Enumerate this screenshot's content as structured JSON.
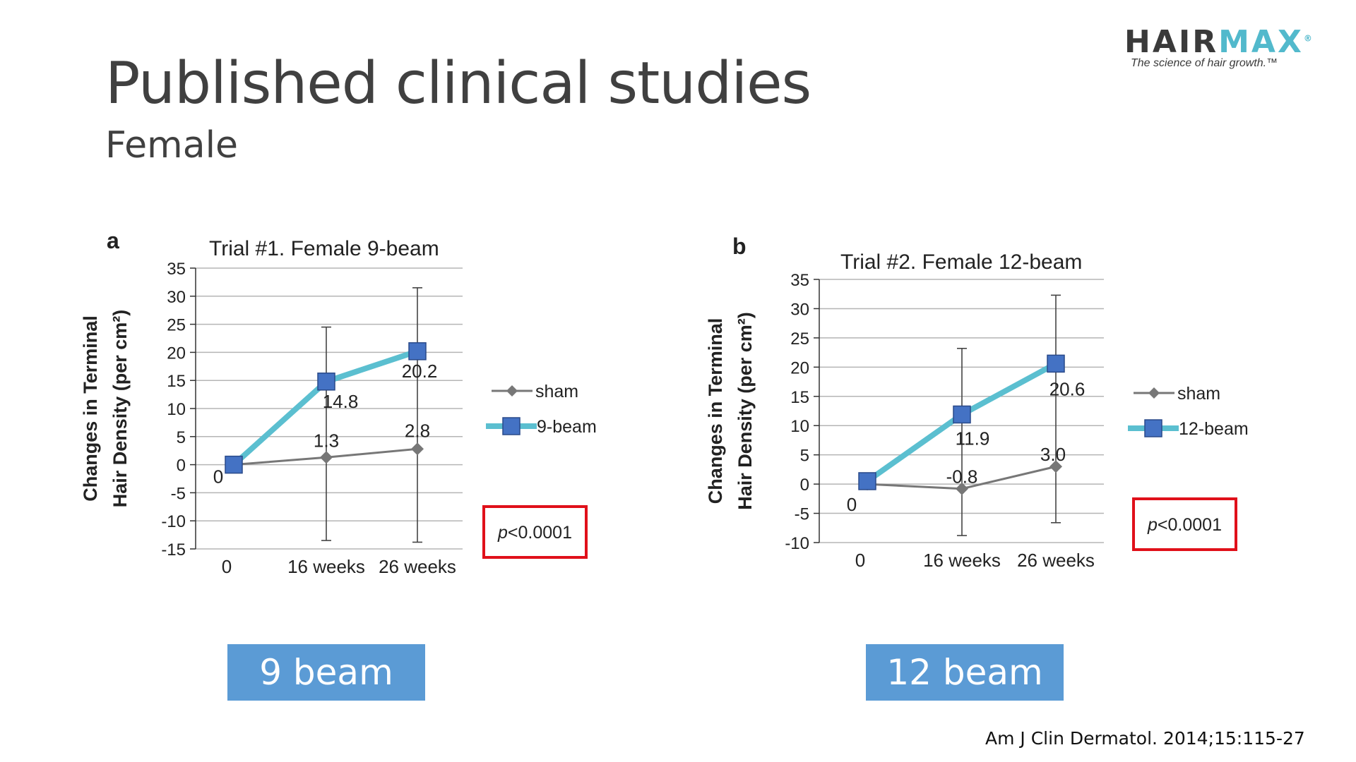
{
  "slide": {
    "title": "Published clinical studies",
    "subtitle": "Female",
    "citation": "Am J Clin Dermatol. 2014;15:115-27",
    "buttons": [
      "9 beam",
      "12 beam"
    ]
  },
  "logo": {
    "brand_left": "HAIR",
    "brand_right": "MAX",
    "registered": "®",
    "tagline": "The science of hair growth.™"
  },
  "colors": {
    "accent": "#5b9bd5",
    "line": "#5bbfd0",
    "marker": "#4472c4",
    "sham": "#777777",
    "pbox": "#e0101a"
  },
  "chart_data": [
    {
      "type": "line",
      "panel_label": "a",
      "title": "Trial #1. Female 9-beam",
      "ylabel": "Changes in Terminal Hair Density (per cm²)",
      "ylim": [
        -15,
        35
      ],
      "yticks": [
        35,
        30,
        25,
        20,
        15,
        10,
        5,
        0,
        -5,
        -10,
        -15
      ],
      "categories": [
        "0",
        "16 weeks",
        "26 weeks"
      ],
      "series": [
        {
          "name": "sham",
          "values": [
            0,
            1.3,
            2.8
          ],
          "labels": [
            "0",
            "1.3",
            "2.8"
          ],
          "errors": [
            null,
            [
              -13.5,
              24.5
            ],
            [
              -13.8,
              31.5
            ]
          ]
        },
        {
          "name": "9-beam",
          "values": [
            0,
            14.8,
            20.2
          ],
          "labels": [
            "",
            "14.8",
            "20.2"
          ]
        }
      ],
      "pvalue": "p<0.0001"
    },
    {
      "type": "line",
      "panel_label": "b",
      "title": "Trial #2. Female 12-beam",
      "ylabel": "Changes in Terminal Hair Density (per cm²)",
      "ylim": [
        -10,
        35
      ],
      "yticks": [
        35,
        30,
        25,
        20,
        15,
        10,
        5,
        0,
        -5,
        -10
      ],
      "categories": [
        "0",
        "16 weeks",
        "26 weeks"
      ],
      "series": [
        {
          "name": "sham",
          "values": [
            0,
            -0.8,
            3.0
          ],
          "labels": [
            "0",
            "-0.8",
            "3.0"
          ],
          "errors": [
            null,
            [
              -8.8,
              23.2
            ],
            [
              -6.6,
              32.3
            ]
          ]
        },
        {
          "name": "12-beam",
          "values": [
            0.5,
            11.9,
            20.6
          ],
          "labels": [
            "",
            "11.9",
            "20.6"
          ]
        }
      ],
      "pvalue": "p<0.0001"
    }
  ]
}
